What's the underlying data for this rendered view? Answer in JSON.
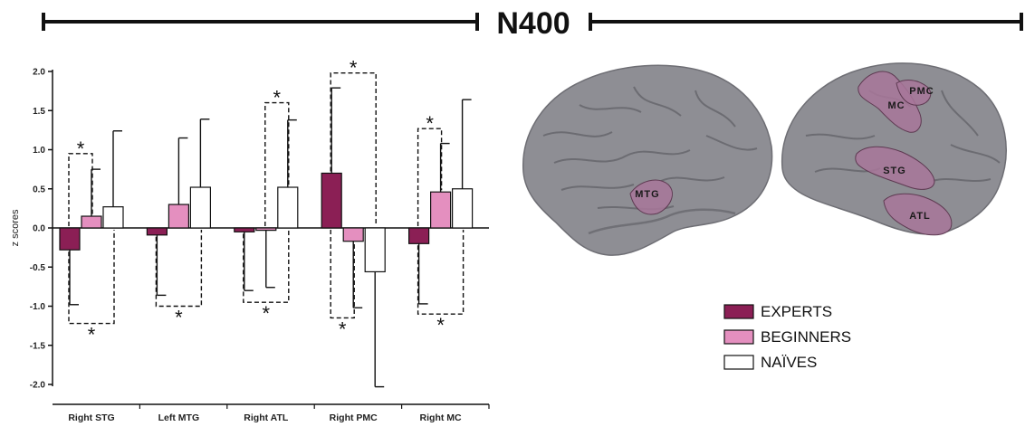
{
  "title": "N400",
  "chart_data": {
    "type": "bar",
    "ylabel": "z scores",
    "xlabel": "",
    "ylim": [
      -2.0,
      2.0
    ],
    "yticks": [
      "2.0",
      "1.5",
      "1.0",
      "0.5",
      "0.0",
      "-0.5",
      "-1.0",
      "-1.5",
      "-2.0"
    ],
    "ytick_values": [
      2.0,
      1.5,
      1.0,
      0.5,
      0.0,
      -0.5,
      -1.0,
      -1.5,
      -2.0
    ],
    "grid": false,
    "legend_position": "bottom-right",
    "categories": [
      "Right STG",
      "Left MTG",
      "Right ATL",
      "Right  PMC",
      "Right MC"
    ],
    "series": [
      {
        "name": "EXPERTS",
        "color": "#8b1f55",
        "values": [
          -0.28,
          -0.09,
          -0.05,
          0.7,
          -0.2
        ],
        "errors": [
          0.7,
          0.77,
          0.75,
          1.09,
          0.77
        ]
      },
      {
        "name": "BEGINNERS",
        "color": "#e48fbf",
        "values": [
          0.15,
          0.3,
          -0.03,
          -0.17,
          0.46
        ],
        "errors": [
          0.6,
          0.85,
          0.73,
          0.85,
          0.62
        ]
      },
      {
        "name": "NAÏVES",
        "color": "#ffffff",
        "values": [
          0.27,
          0.52,
          0.52,
          -0.56,
          0.5
        ],
        "errors": [
          0.97,
          0.87,
          0.86,
          1.47,
          1.14
        ]
      }
    ],
    "significance": [
      {
        "category": 0,
        "between": [
          0,
          1
        ],
        "side": "above",
        "level": 0.95,
        "label": "*"
      },
      {
        "category": 0,
        "between": [
          0,
          2
        ],
        "side": "below",
        "level": -1.22,
        "label": "*"
      },
      {
        "category": 1,
        "between": [
          0,
          2
        ],
        "side": "below",
        "level": -1.0,
        "label": "*"
      },
      {
        "category": 2,
        "between": [
          1,
          2
        ],
        "side": "above",
        "level": 1.6,
        "label": "*"
      },
      {
        "category": 2,
        "between": [
          0,
          2
        ],
        "side": "below",
        "level": -0.95,
        "label": "*"
      },
      {
        "category": 3,
        "between": [
          0,
          2
        ],
        "side": "above",
        "level": 1.98,
        "label": "*"
      },
      {
        "category": 3,
        "between": [
          0,
          1
        ],
        "side": "below",
        "level": -1.15,
        "label": "*"
      },
      {
        "category": 4,
        "between": [
          0,
          1
        ],
        "side": "above",
        "level": 1.27,
        "label": "*"
      },
      {
        "category": 4,
        "between": [
          0,
          2
        ],
        "side": "below",
        "level": -1.1,
        "label": "*"
      }
    ]
  },
  "brain": {
    "left_hemisphere_regions": [
      "MTG"
    ],
    "right_hemisphere_regions": [
      "PMC",
      "MC",
      "STG",
      "ATL"
    ],
    "region_color": "#a8779a",
    "cortex_color": "#8e8e94"
  }
}
